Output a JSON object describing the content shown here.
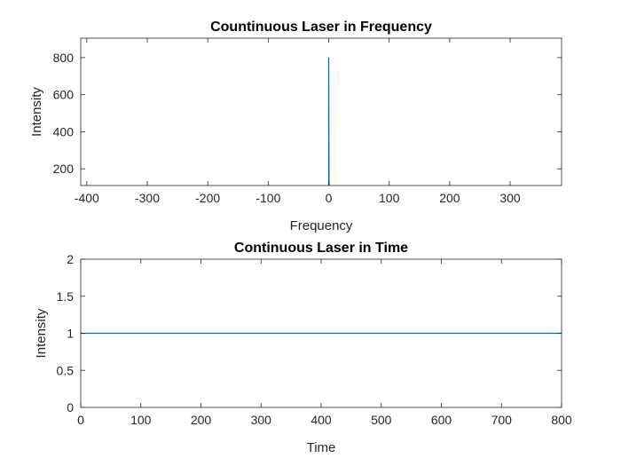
{
  "colors": {
    "series": "#0072bd",
    "axes": "#262626",
    "background": "#ffffff"
  },
  "chart_data": [
    {
      "type": "line",
      "title": "Countinuous Laser in Frequency",
      "xlabel": "Frequency",
      "ylabel": "Intensity",
      "xlim": [
        -410,
        385
      ],
      "ylim": [
        110,
        905
      ],
      "xticks": [
        -400,
        -300,
        -200,
        -100,
        0,
        100,
        200,
        300
      ],
      "yticks": [
        200,
        400,
        600,
        800
      ],
      "grid": false,
      "series": [
        {
          "x": [
            -2,
            0,
            0,
            0.5,
            1,
            2
          ],
          "y": [
            110,
            110,
            800,
            130,
            110,
            110
          ]
        }
      ]
    },
    {
      "type": "line",
      "title": "Continuous Laser in Time",
      "xlabel": "Time",
      "ylabel": "Intensity",
      "xlim": [
        0,
        800
      ],
      "ylim": [
        0,
        2
      ],
      "xticks": [
        0,
        100,
        200,
        300,
        400,
        500,
        600,
        700,
        800
      ],
      "yticks": [
        0,
        0.5,
        1,
        1.5,
        2
      ],
      "grid": false,
      "series": [
        {
          "x": [
            0,
            800
          ],
          "y": [
            1,
            1
          ]
        }
      ]
    }
  ]
}
